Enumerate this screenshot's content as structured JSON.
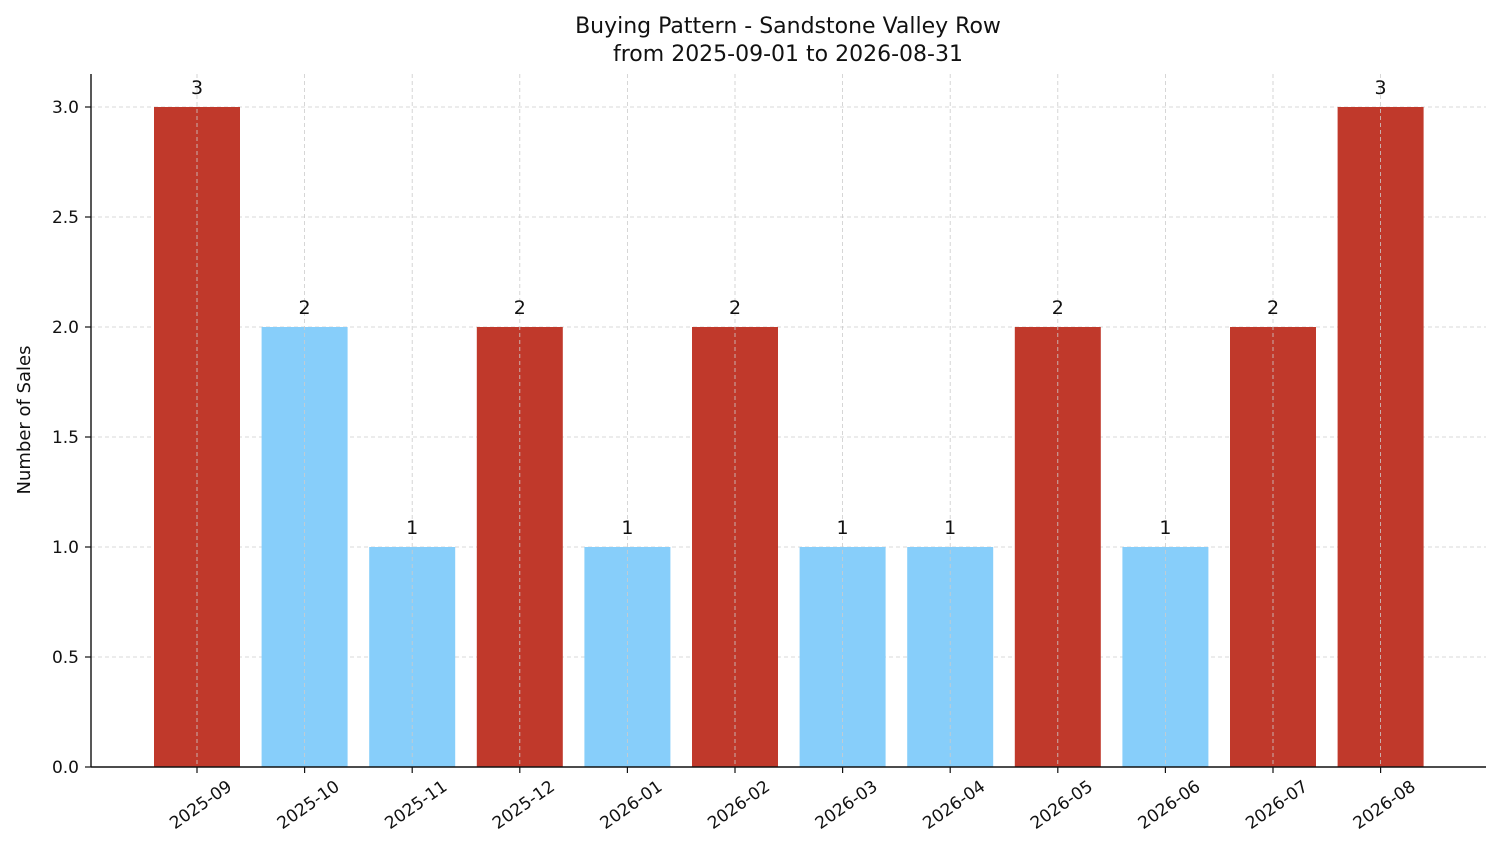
{
  "chart_data": {
    "type": "bar",
    "title": "Buying Pattern - Sandstone Valley Row",
    "subtitle": "from 2025-09-01 to 2026-08-31",
    "xlabel": "",
    "ylabel": "Number of Sales",
    "categories": [
      "2025-09",
      "2025-10",
      "2025-11",
      "2025-12",
      "2026-01",
      "2026-02",
      "2026-03",
      "2026-04",
      "2026-05",
      "2026-06",
      "2026-07",
      "2026-08"
    ],
    "values": [
      3,
      2,
      1,
      2,
      1,
      2,
      1,
      1,
      2,
      1,
      2,
      3
    ],
    "data_labels": [
      "3",
      "2",
      "1",
      "2",
      "1",
      "2",
      "1",
      "1",
      "2",
      "1",
      "2",
      "3"
    ],
    "highlight": [
      true,
      false,
      false,
      true,
      false,
      true,
      false,
      false,
      true,
      false,
      true,
      true
    ],
    "ylim": [
      0,
      3.15
    ],
    "yticks": [
      "0.0",
      "0.5",
      "1.0",
      "1.5",
      "2.0",
      "2.5",
      "3.0"
    ],
    "colors": {
      "highlight": "#c0392b",
      "normal": "#87cefa"
    },
    "grid": true,
    "legend": "none"
  }
}
